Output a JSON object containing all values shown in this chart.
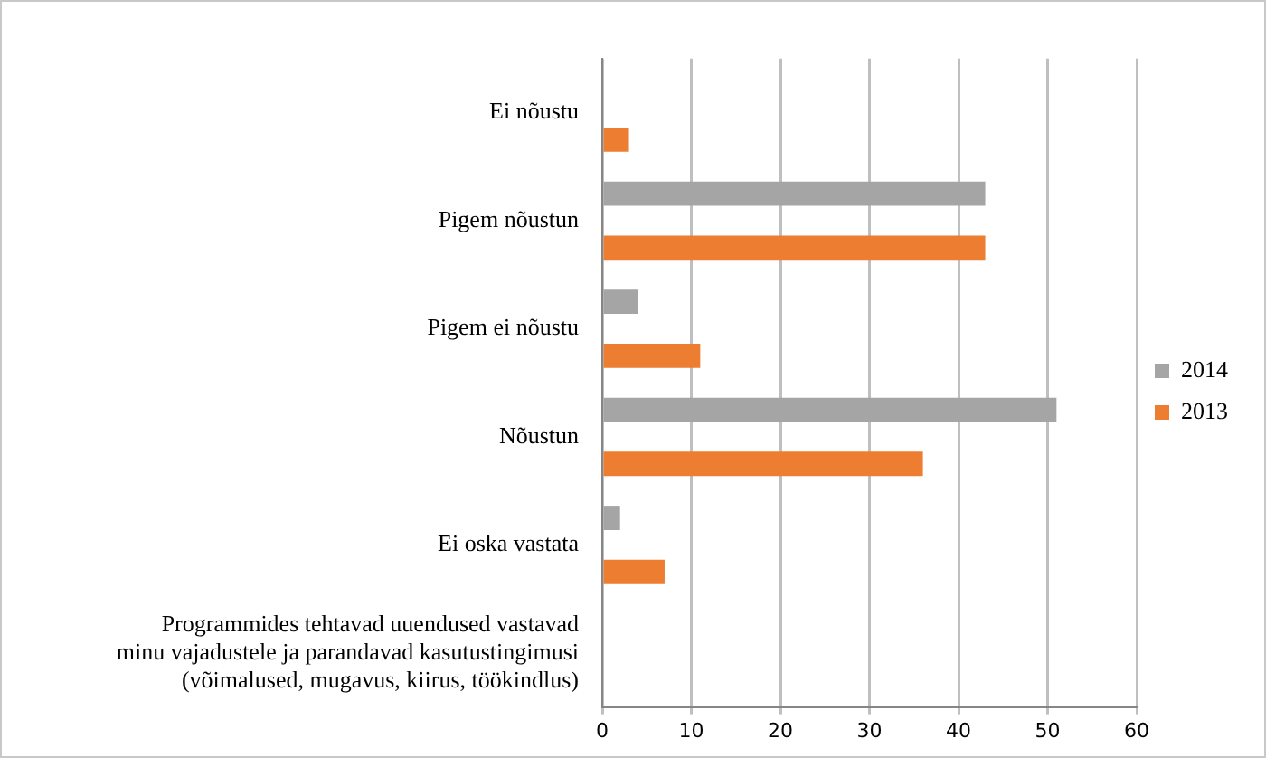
{
  "chart_data": {
    "type": "bar",
    "orientation": "horizontal",
    "categories": [
      "Ei nõustu",
      "Pigem nõustun",
      "Pigem ei nõustu",
      "Nõustun",
      "Ei oska vastata",
      "Programmides tehtavad uuendused vastavad\nminu vajadustele ja parandavad kasutustingimusi\n(võimalused, mugavus, kiirus, töökindlus)"
    ],
    "series": [
      {
        "name": "2014",
        "color": "#a5a5a5",
        "values": [
          null,
          43,
          4,
          51,
          2,
          null
        ]
      },
      {
        "name": "2013",
        "color": "#ed7d31",
        "values": [
          3,
          43,
          11,
          36,
          7,
          null
        ]
      }
    ],
    "xlim": [
      0,
      60
    ],
    "xticks": [
      0,
      10,
      20,
      30,
      40,
      50,
      60
    ],
    "grid": "x",
    "legend": "right"
  }
}
